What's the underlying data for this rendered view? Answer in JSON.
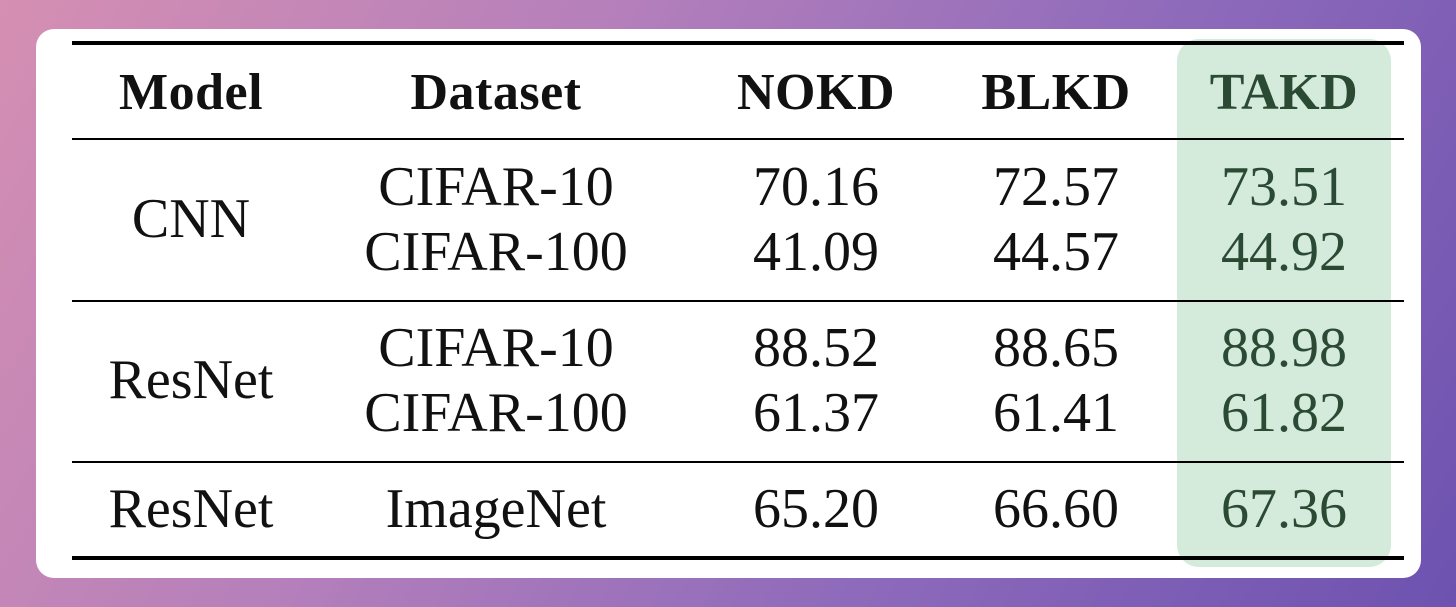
{
  "table": {
    "headers": [
      "Model",
      "Dataset",
      "NOKD",
      "BLKD",
      "TAKD"
    ],
    "groups": [
      {
        "model": "CNN",
        "rows": [
          {
            "dataset": "CIFAR-10",
            "nokd": "70.16",
            "blkd": "72.57",
            "takd": "73.51"
          },
          {
            "dataset": "CIFAR-100",
            "nokd": "41.09",
            "blkd": "44.57",
            "takd": "44.92"
          }
        ]
      },
      {
        "model": "ResNet",
        "rows": [
          {
            "dataset": "CIFAR-10",
            "nokd": "88.52",
            "blkd": "88.65",
            "takd": "88.98"
          },
          {
            "dataset": "CIFAR-100",
            "nokd": "61.37",
            "blkd": "61.41",
            "takd": "61.82"
          }
        ]
      },
      {
        "model": "ResNet",
        "rows": [
          {
            "dataset": "ImageNet",
            "nokd": "65.20",
            "blkd": "66.60",
            "takd": "67.36"
          }
        ]
      }
    ]
  },
  "colors": {
    "highlight_column": "#d4eadb",
    "highlight_text": "#2b4a34"
  }
}
